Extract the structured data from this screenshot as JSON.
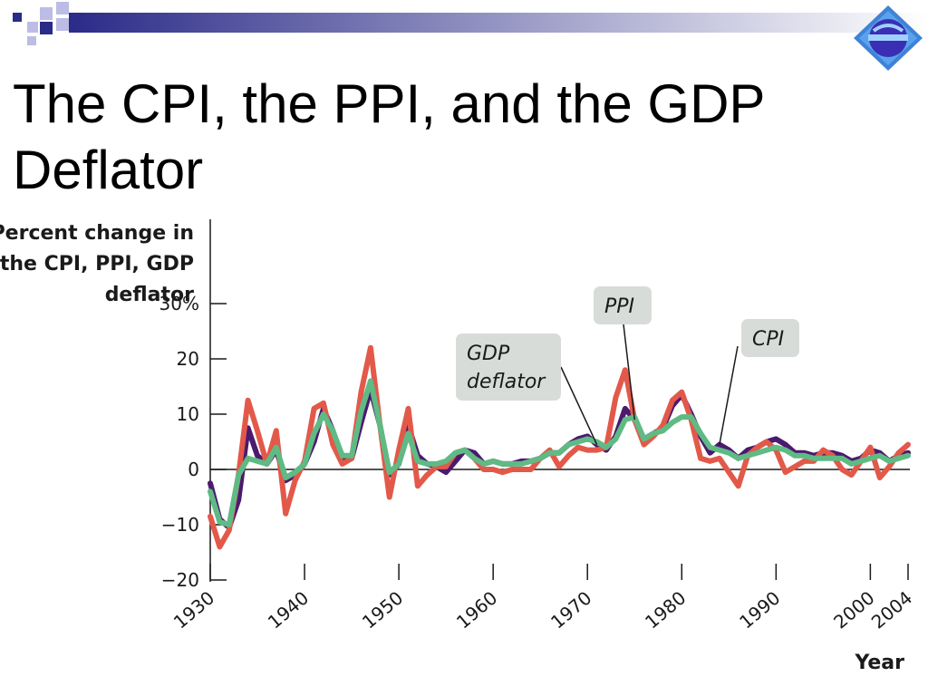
{
  "slide": {
    "title": "The CPI, the PPI, and the GDP Deflator",
    "logo_icon": "globe-logo-icon",
    "accent_color": "#2b2b88"
  },
  "chart_data": {
    "type": "line",
    "ylabel_lines": [
      "Percent change in",
      "the CPI, PPI, GDP",
      "deflator"
    ],
    "xlabel": "Year",
    "ylim": [
      -20,
      30
    ],
    "xlim": [
      1930,
      2004
    ],
    "yticks": [
      -20,
      -10,
      0,
      10,
      20,
      30
    ],
    "ytick_labels": [
      "−20",
      "−10",
      "0",
      "10",
      "20",
      "30%"
    ],
    "xticks": [
      1930,
      1940,
      1950,
      1960,
      1970,
      1980,
      1990,
      2000,
      2004
    ],
    "xtick_labels": [
      "1930",
      "1940",
      "1950",
      "1960",
      "1970",
      "1980",
      "1990",
      "2000",
      "2004"
    ],
    "grid": false,
    "x": [
      1930,
      1931,
      1932,
      1933,
      1934,
      1935,
      1936,
      1937,
      1938,
      1939,
      1940,
      1941,
      1942,
      1943,
      1944,
      1945,
      1946,
      1947,
      1948,
      1949,
      1950,
      1951,
      1952,
      1953,
      1954,
      1955,
      1956,
      1957,
      1958,
      1959,
      1960,
      1961,
      1962,
      1963,
      1964,
      1965,
      1966,
      1967,
      1968,
      1969,
      1970,
      1971,
      1972,
      1973,
      1974,
      1975,
      1976,
      1977,
      1978,
      1979,
      1980,
      1981,
      1982,
      1983,
      1984,
      1985,
      1986,
      1987,
      1988,
      1989,
      1990,
      1991,
      1992,
      1993,
      1994,
      1995,
      1996,
      1997,
      1998,
      1999,
      2000,
      2001,
      2002,
      2003,
      2004
    ],
    "series": [
      {
        "name": "CPI",
        "color": "#4b1a6e",
        "values": [
          -2.5,
          -9,
          -10.5,
          -5.5,
          7.5,
          2.5,
          1,
          3.5,
          -2,
          -1,
          1,
          5,
          11,
          7,
          2,
          2,
          8.5,
          14.5,
          8,
          -1,
          1,
          8,
          2.5,
          1,
          0.5,
          -0.5,
          1.5,
          3.5,
          3,
          1,
          1.5,
          1,
          1,
          1.5,
          1.5,
          2,
          3,
          3,
          4.5,
          5.5,
          6,
          4.5,
          3.5,
          6,
          11,
          9,
          5.5,
          6.5,
          7.5,
          11.5,
          13.5,
          10,
          6,
          3,
          4.5,
          3.5,
          2,
          3.5,
          4,
          5,
          5.5,
          4.5,
          3,
          3,
          2.5,
          3,
          3,
          2.5,
          1.5,
          2,
          3.5,
          3,
          1.5,
          2.5,
          3
        ]
      },
      {
        "name": "PPI",
        "color": "#e2594a",
        "values": [
          -8.5,
          -14,
          -11,
          -1,
          12.5,
          7,
          1,
          7,
          -8,
          -2,
          1.5,
          11,
          12,
          4.5,
          1,
          2,
          14,
          22,
          8,
          -5,
          3.5,
          11,
          -3,
          -1,
          0.5,
          0.5,
          3,
          3.5,
          2,
          0,
          0,
          -0.5,
          0,
          0,
          0,
          2,
          3.5,
          0.5,
          2.5,
          4,
          3.5,
          3.5,
          4,
          13,
          18,
          9,
          4.5,
          6,
          8,
          12.5,
          14,
          9,
          2,
          1.5,
          2,
          -0.5,
          -3,
          2.5,
          4,
          5,
          3.5,
          -0.5,
          0.5,
          1.5,
          1.5,
          3.5,
          2.5,
          0,
          -1,
          1.5,
          4,
          -1.5,
          0.5,
          3,
          4.5
        ]
      },
      {
        "name": "GDP deflator",
        "color": "#5fba84",
        "values": [
          -4,
          -9.5,
          -10,
          -1,
          2,
          1.5,
          1,
          4,
          -1.5,
          -0.5,
          1,
          6.5,
          10,
          7,
          2.5,
          2.5,
          10.5,
          16,
          8,
          -0.5,
          1,
          6.5,
          1.5,
          1,
          1,
          1.5,
          3,
          3.5,
          2,
          1,
          1.5,
          1,
          1,
          1,
          1.5,
          2,
          3,
          3,
          4.5,
          5,
          5.5,
          5,
          4,
          5.5,
          9,
          9.5,
          5.5,
          6.5,
          7,
          8.5,
          9.5,
          9.5,
          6.5,
          4,
          3.5,
          3,
          2,
          2.5,
          3,
          3.5,
          4,
          3.5,
          2.5,
          2.5,
          2,
          2,
          2,
          2,
          1,
          1.5,
          2,
          2.5,
          1.5,
          2,
          2.5
        ]
      }
    ],
    "annotations": [
      {
        "text_lines": [
          "PPI"
        ],
        "target_series": "PPI",
        "target_x": 1975
      },
      {
        "text_lines": [
          "CPI"
        ],
        "target_series": "CPI",
        "target_x": 1984
      },
      {
        "text_lines": [
          "GDP",
          "deflator"
        ],
        "target_series": "CPI",
        "target_x": 1971
      }
    ]
  }
}
